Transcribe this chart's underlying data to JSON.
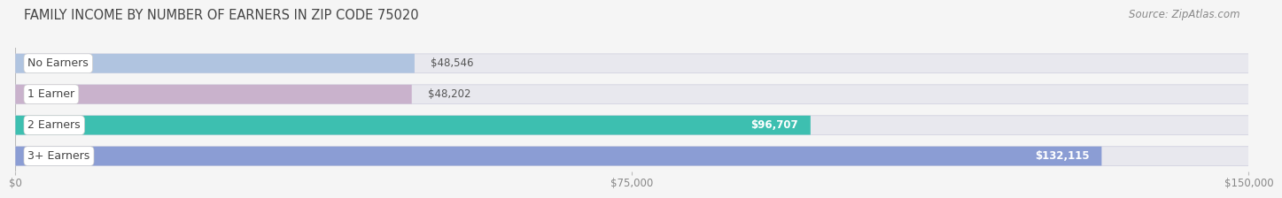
{
  "title": "FAMILY INCOME BY NUMBER OF EARNERS IN ZIP CODE 75020",
  "source": "Source: ZipAtlas.com",
  "categories": [
    "No Earners",
    "1 Earner",
    "2 Earners",
    "3+ Earners"
  ],
  "values": [
    48546,
    48202,
    96707,
    132115
  ],
  "labels": [
    "$48,546",
    "$48,202",
    "$96,707",
    "$132,115"
  ],
  "bar_colors": [
    "#b0c4e0",
    "#c9b2cc",
    "#3dbfb0",
    "#8b9dd4"
  ],
  "bar_bg_color": "#e8e8ee",
  "bar_border_color": "#ccccdd",
  "xlim": [
    0,
    150000
  ],
  "xtick_values": [
    0,
    75000,
    150000
  ],
  "xtick_labels": [
    "$0",
    "$75,000",
    "$150,000"
  ],
  "background_color": "#f5f5f5",
  "title_fontsize": 10.5,
  "source_fontsize": 8.5,
  "label_fontsize": 8.5,
  "category_fontsize": 9,
  "value_label_color_light": "#ffffff",
  "value_label_color_dark": "#555555",
  "value_threshold": 60000
}
